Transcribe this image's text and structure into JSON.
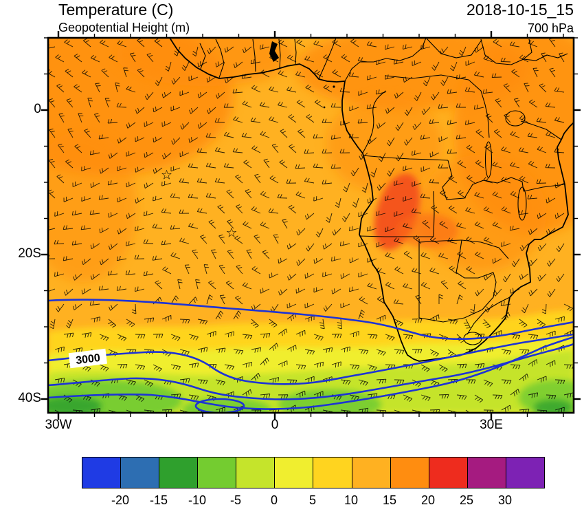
{
  "header": {
    "title": "Temperature (C)",
    "subtitle": "Geopotential Height (m)",
    "datetime": "2018-10-15_15",
    "level": "700 hPa"
  },
  "chart_data": {
    "type": "heatmap",
    "title": "Temperature (C)",
    "overlay_contours": "Geopotential Height (m)",
    "valid_time": "2018-10-15_15",
    "pressure_level": "700 hPa",
    "region": "Southern Africa / South Atlantic",
    "map_extent": {
      "lon_min": -31.4,
      "lon_max": 41.4,
      "lat_min": -41.9,
      "lat_max": 10
    },
    "x_ticks": [
      {
        "lon": -30,
        "label": "30W"
      },
      {
        "lon": 0,
        "label": "0"
      },
      {
        "lon": 30,
        "label": "30E"
      }
    ],
    "y_ticks": [
      {
        "lat": 0,
        "label": "0"
      },
      {
        "lat": -20,
        "label": "20S"
      },
      {
        "lat": -40,
        "label": "40S"
      }
    ],
    "minor_tick_interval_deg": 5,
    "colorbar": {
      "units": "C",
      "levels": [
        -20,
        -15,
        -10,
        -5,
        0,
        5,
        10,
        15,
        20,
        25,
        30
      ],
      "colors": [
        "#1f3be4",
        "#2d6eb2",
        "#2fa02d",
        "#74cc30",
        "#c5e42b",
        "#f0ee2f",
        "#ffd41f",
        "#ffb121",
        "#ff8d10",
        "#ee2c1e",
        "#a51b80",
        "#7d22b4"
      ]
    },
    "height_contours": {
      "labels": [
        "3000"
      ],
      "note": "blue geopotential height contours across the subtropics south of ~25S"
    },
    "wind_barbs": true,
    "markers": [
      {
        "symbol": "star",
        "lon": -15,
        "lat": -9
      },
      {
        "symbol": "star",
        "lon": -6,
        "lat": -17
      }
    ],
    "sampled_temperature_estimate_C": {
      "lons": [
        -30,
        -20,
        -10,
        0,
        10,
        20,
        30,
        40
      ],
      "lats": [
        5,
        0,
        -10,
        -20,
        -30,
        -35,
        -40
      ],
      "values": [
        [
          17,
          16,
          14,
          13,
          13,
          14,
          17,
          17
        ],
        [
          16,
          14,
          13,
          13,
          13,
          14,
          16,
          16
        ],
        [
          14,
          13,
          13,
          13,
          13,
          17,
          14,
          14
        ],
        [
          13,
          13,
          13,
          13,
          13,
          14,
          13,
          13
        ],
        [
          9,
          11,
          11,
          11,
          12,
          12,
          12,
          9
        ],
        [
          4,
          6,
          7,
          7,
          8,
          8,
          8,
          6
        ],
        [
          1,
          3,
          3,
          4,
          4,
          6,
          6,
          3
        ]
      ]
    }
  }
}
